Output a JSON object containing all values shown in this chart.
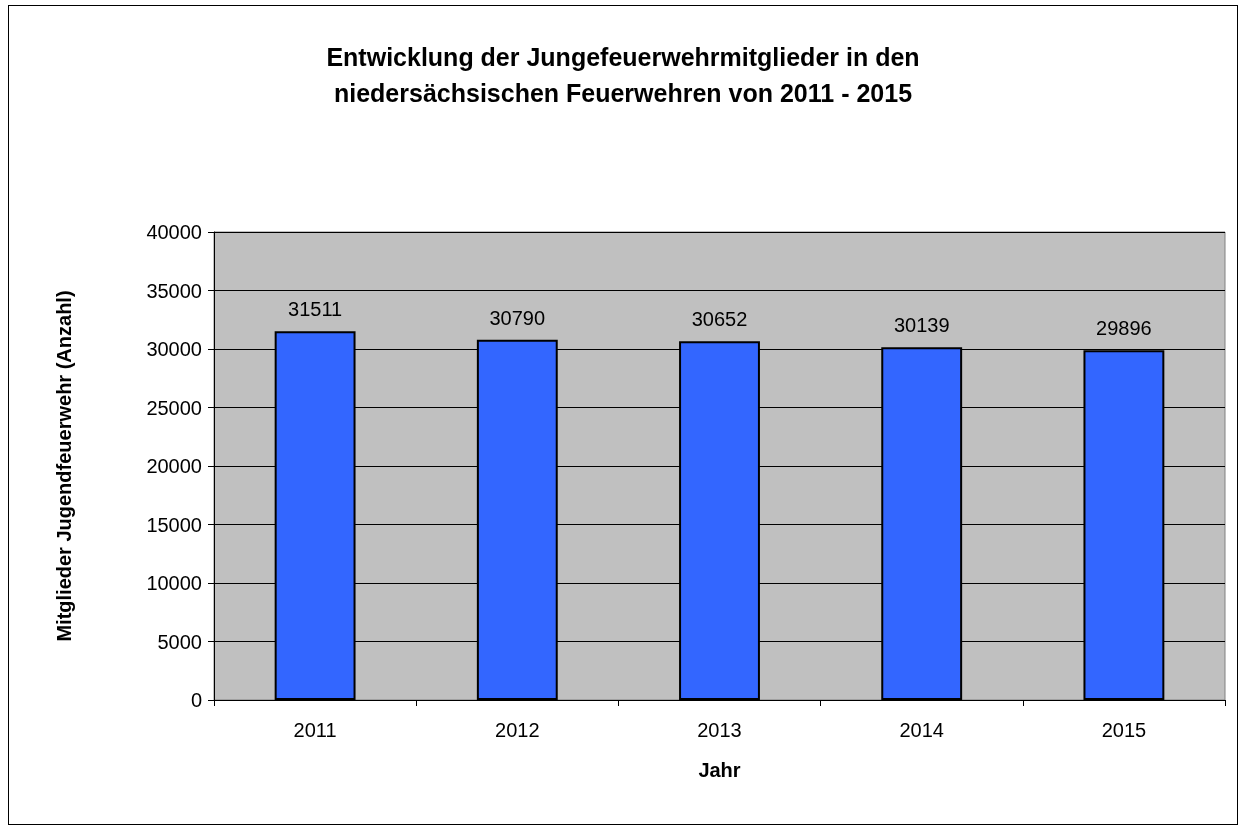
{
  "chart_data": {
    "type": "bar",
    "title": "Entwicklung der Jungefeuerwehrmitglieder in den\nniedersächsischen Feuerwehren von 2011 - 2015",
    "xlabel": "Jahr",
    "ylabel": "Mitglieder Jugendfeuerwehr (Anzahl)",
    "categories": [
      "2011",
      "2012",
      "2013",
      "2014",
      "2015"
    ],
    "values": [
      31511,
      30790,
      30652,
      30139,
      29896
    ],
    "color": "#3366ff",
    "ylim": [
      0,
      40000
    ],
    "yticks": [
      0,
      5000,
      10000,
      15000,
      20000,
      25000,
      30000,
      35000,
      40000
    ],
    "grid": "y",
    "data_labels": true
  }
}
